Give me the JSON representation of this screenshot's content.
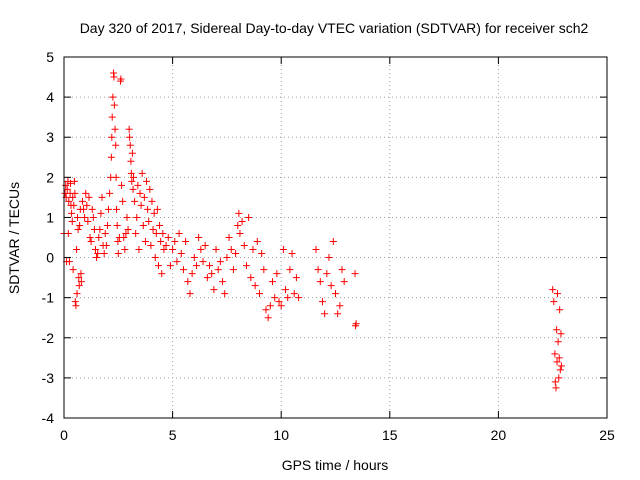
{
  "chart_data": {
    "type": "scatter",
    "title": "Day 320 of 2017, Sidereal Day-to-day VTEC variation (SDTVAR) for receiver sch2",
    "xlabel": "GPS time / hours",
    "ylabel": "SDTVAR / TECUs",
    "xlim": [
      0,
      25
    ],
    "ylim": [
      -4,
      5
    ],
    "xticks": [
      0,
      5,
      10,
      15,
      20,
      25
    ],
    "yticks": [
      -4,
      -3,
      -2,
      -1,
      0,
      1,
      2,
      3,
      4,
      5
    ],
    "grid": true,
    "marker": "+",
    "color": "#ff0000",
    "series": [
      {
        "name": "sch2",
        "points": [
          [
            0.0,
            0.6
          ],
          [
            0.05,
            1.6
          ],
          [
            0.08,
            1.8
          ],
          [
            0.1,
            1.5
          ],
          [
            0.12,
            -0.1
          ],
          [
            0.15,
            1.7
          ],
          [
            0.18,
            1.9
          ],
          [
            0.2,
            0.6
          ],
          [
            0.22,
            1.4
          ],
          [
            0.25,
            -0.1
          ],
          [
            0.28,
            1.6
          ],
          [
            0.3,
            1.85
          ],
          [
            0.32,
            1.3
          ],
          [
            0.35,
            1.1
          ],
          [
            0.38,
            0.9
          ],
          [
            0.4,
            1.5
          ],
          [
            0.42,
            -0.3
          ],
          [
            0.45,
            1.3
          ],
          [
            0.48,
            1.9
          ],
          [
            0.5,
            1.6
          ],
          [
            0.52,
            -1.1
          ],
          [
            0.55,
            -1.2
          ],
          [
            0.58,
            0.2
          ],
          [
            0.6,
            -0.9
          ],
          [
            0.62,
            1.0
          ],
          [
            0.65,
            0.7
          ],
          [
            0.68,
            -0.5
          ],
          [
            0.7,
            -0.7
          ],
          [
            0.72,
            0.8
          ],
          [
            0.75,
            1.2
          ],
          [
            0.78,
            -0.4
          ],
          [
            0.8,
            -0.6
          ],
          [
            0.85,
            1.4
          ],
          [
            0.9,
            1.2
          ],
          [
            0.95,
            1.0
          ],
          [
            1.0,
            1.6
          ],
          [
            1.05,
            1.3
          ],
          [
            1.1,
            0.9
          ],
          [
            1.15,
            1.5
          ],
          [
            1.2,
            0.5
          ],
          [
            1.25,
            0.4
          ],
          [
            1.3,
            1.2
          ],
          [
            1.35,
            1.0
          ],
          [
            1.4,
            0.7
          ],
          [
            1.45,
            0.2
          ],
          [
            1.5,
            0.0
          ],
          [
            1.55,
            0.1
          ],
          [
            1.6,
            0.5
          ],
          [
            1.65,
            0.7
          ],
          [
            1.7,
            1.1
          ],
          [
            1.75,
            1.5
          ],
          [
            1.8,
            0.3
          ],
          [
            1.85,
            0.1
          ],
          [
            1.9,
            0.6
          ],
          [
            1.95,
            0.3
          ],
          [
            2.0,
            0.8
          ],
          [
            2.05,
            1.2
          ],
          [
            2.1,
            1.6
          ],
          [
            2.15,
            2.0
          ],
          [
            2.18,
            2.5
          ],
          [
            2.2,
            3.0
          ],
          [
            2.22,
            3.5
          ],
          [
            2.25,
            4.0
          ],
          [
            2.28,
            4.6
          ],
          [
            2.3,
            4.5
          ],
          [
            2.32,
            3.8
          ],
          [
            2.35,
            3.2
          ],
          [
            2.38,
            2.8
          ],
          [
            2.4,
            2.0
          ],
          [
            2.42,
            1.2
          ],
          [
            2.45,
            0.8
          ],
          [
            2.48,
            0.4
          ],
          [
            2.5,
            0.1
          ],
          [
            2.55,
            0.5
          ],
          [
            2.6,
            4.4
          ],
          [
            2.62,
            4.45
          ],
          [
            2.65,
            1.8
          ],
          [
            2.7,
            1.4
          ],
          [
            2.75,
            0.5
          ],
          [
            2.8,
            0.2
          ],
          [
            2.85,
            0.6
          ],
          [
            2.9,
            1.0
          ],
          [
            2.95,
            0.7
          ],
          [
            3.0,
            3.2
          ],
          [
            3.02,
            3.0
          ],
          [
            3.05,
            2.8
          ],
          [
            3.08,
            2.4
          ],
          [
            3.1,
            2.1
          ],
          [
            3.12,
            1.9
          ],
          [
            3.15,
            2.6
          ],
          [
            3.18,
            1.7
          ],
          [
            3.2,
            2.0
          ],
          [
            3.25,
            1.4
          ],
          [
            3.3,
            0.6
          ],
          [
            3.35,
            1.0
          ],
          [
            3.4,
            1.8
          ],
          [
            3.45,
            0.2
          ],
          [
            3.5,
            1.6
          ],
          [
            3.55,
            1.3
          ],
          [
            3.6,
            2.1
          ],
          [
            3.65,
            0.8
          ],
          [
            3.7,
            1.5
          ],
          [
            3.75,
            0.4
          ],
          [
            3.8,
            1.9
          ],
          [
            3.85,
            1.2
          ],
          [
            3.9,
            0.9
          ],
          [
            3.95,
            1.7
          ],
          [
            4.0,
            0.3
          ],
          [
            4.05,
            1.4
          ],
          [
            4.1,
            0.7
          ],
          [
            4.15,
            1.1
          ],
          [
            4.2,
            0.0
          ],
          [
            4.25,
            0.6
          ],
          [
            4.3,
            1.2
          ],
          [
            4.35,
            -0.2
          ],
          [
            4.4,
            0.8
          ],
          [
            4.45,
            0.4
          ],
          [
            4.5,
            -0.4
          ],
          [
            4.55,
            0.6
          ],
          [
            4.6,
            0.2
          ],
          [
            4.7,
            0.3
          ],
          [
            4.8,
            0.5
          ],
          [
            4.9,
            -0.2
          ],
          [
            5.0,
            0.2
          ],
          [
            5.1,
            0.4
          ],
          [
            5.2,
            -0.1
          ],
          [
            5.3,
            0.6
          ],
          [
            5.4,
            0.1
          ],
          [
            5.5,
            -0.3
          ],
          [
            5.6,
            0.4
          ],
          [
            5.7,
            -0.6
          ],
          [
            5.8,
            -0.9
          ],
          [
            5.9,
            -0.4
          ],
          [
            6.0,
            0.0
          ],
          [
            6.1,
            -0.2
          ],
          [
            6.2,
            0.5
          ],
          [
            6.3,
            0.2
          ],
          [
            6.4,
            -0.1
          ],
          [
            6.5,
            0.3
          ],
          [
            6.6,
            -0.5
          ],
          [
            6.7,
            -0.2
          ],
          [
            6.8,
            -0.4
          ],
          [
            6.9,
            -0.8
          ],
          [
            7.0,
            0.2
          ],
          [
            7.1,
            -0.3
          ],
          [
            7.2,
            -0.1
          ],
          [
            7.3,
            -0.6
          ],
          [
            7.4,
            -0.9
          ],
          [
            7.5,
            0.0
          ],
          [
            7.6,
            0.5
          ],
          [
            7.7,
            0.2
          ],
          [
            7.8,
            -0.3
          ],
          [
            7.9,
            0.1
          ],
          [
            8.0,
            0.8
          ],
          [
            8.05,
            1.1
          ],
          [
            8.1,
            0.6
          ],
          [
            8.2,
            0.9
          ],
          [
            8.3,
            0.3
          ],
          [
            8.4,
            -0.2
          ],
          [
            8.5,
            1.0
          ],
          [
            8.6,
            -0.5
          ],
          [
            8.7,
            0.2
          ],
          [
            8.8,
            -0.7
          ],
          [
            8.9,
            0.4
          ],
          [
            9.0,
            -0.9
          ],
          [
            9.1,
            0.1
          ],
          [
            9.2,
            -0.3
          ],
          [
            9.3,
            -1.3
          ],
          [
            9.4,
            -1.5
          ],
          [
            9.5,
            -1.2
          ],
          [
            9.6,
            -0.6
          ],
          [
            9.7,
            -1.0
          ],
          [
            9.8,
            -0.4
          ],
          [
            9.9,
            -1.1
          ],
          [
            10.0,
            -1.2
          ],
          [
            10.1,
            0.2
          ],
          [
            10.2,
            -0.8
          ],
          [
            10.3,
            -1.0
          ],
          [
            10.4,
            -0.3
          ],
          [
            10.5,
            0.1
          ],
          [
            10.6,
            -0.9
          ],
          [
            10.7,
            -0.5
          ],
          [
            10.8,
            -1.0
          ],
          [
            11.6,
            0.2
          ],
          [
            11.7,
            -0.3
          ],
          [
            11.8,
            -0.6
          ],
          [
            11.9,
            -1.1
          ],
          [
            12.0,
            -1.4
          ],
          [
            12.1,
            -0.4
          ],
          [
            12.2,
            0.0
          ],
          [
            12.3,
            -0.7
          ],
          [
            12.4,
            0.4
          ],
          [
            12.5,
            -0.9
          ],
          [
            12.6,
            -1.4
          ],
          [
            12.7,
            -1.2
          ],
          [
            12.8,
            -0.3
          ],
          [
            12.9,
            -0.6
          ],
          [
            13.4,
            -0.4
          ],
          [
            13.42,
            -1.7
          ],
          [
            13.45,
            -1.65
          ],
          [
            22.5,
            -0.8
          ],
          [
            22.55,
            -1.1
          ],
          [
            22.6,
            -2.4
          ],
          [
            22.62,
            -3.1
          ],
          [
            22.65,
            -3.25
          ],
          [
            22.68,
            -1.8
          ],
          [
            22.7,
            -2.6
          ],
          [
            22.72,
            -0.9
          ],
          [
            22.75,
            -2.1
          ],
          [
            22.78,
            -3.0
          ],
          [
            22.8,
            -2.5
          ],
          [
            22.82,
            -1.3
          ],
          [
            22.85,
            -2.8
          ],
          [
            22.88,
            -1.9
          ],
          [
            22.9,
            -2.7
          ]
        ]
      }
    ]
  }
}
